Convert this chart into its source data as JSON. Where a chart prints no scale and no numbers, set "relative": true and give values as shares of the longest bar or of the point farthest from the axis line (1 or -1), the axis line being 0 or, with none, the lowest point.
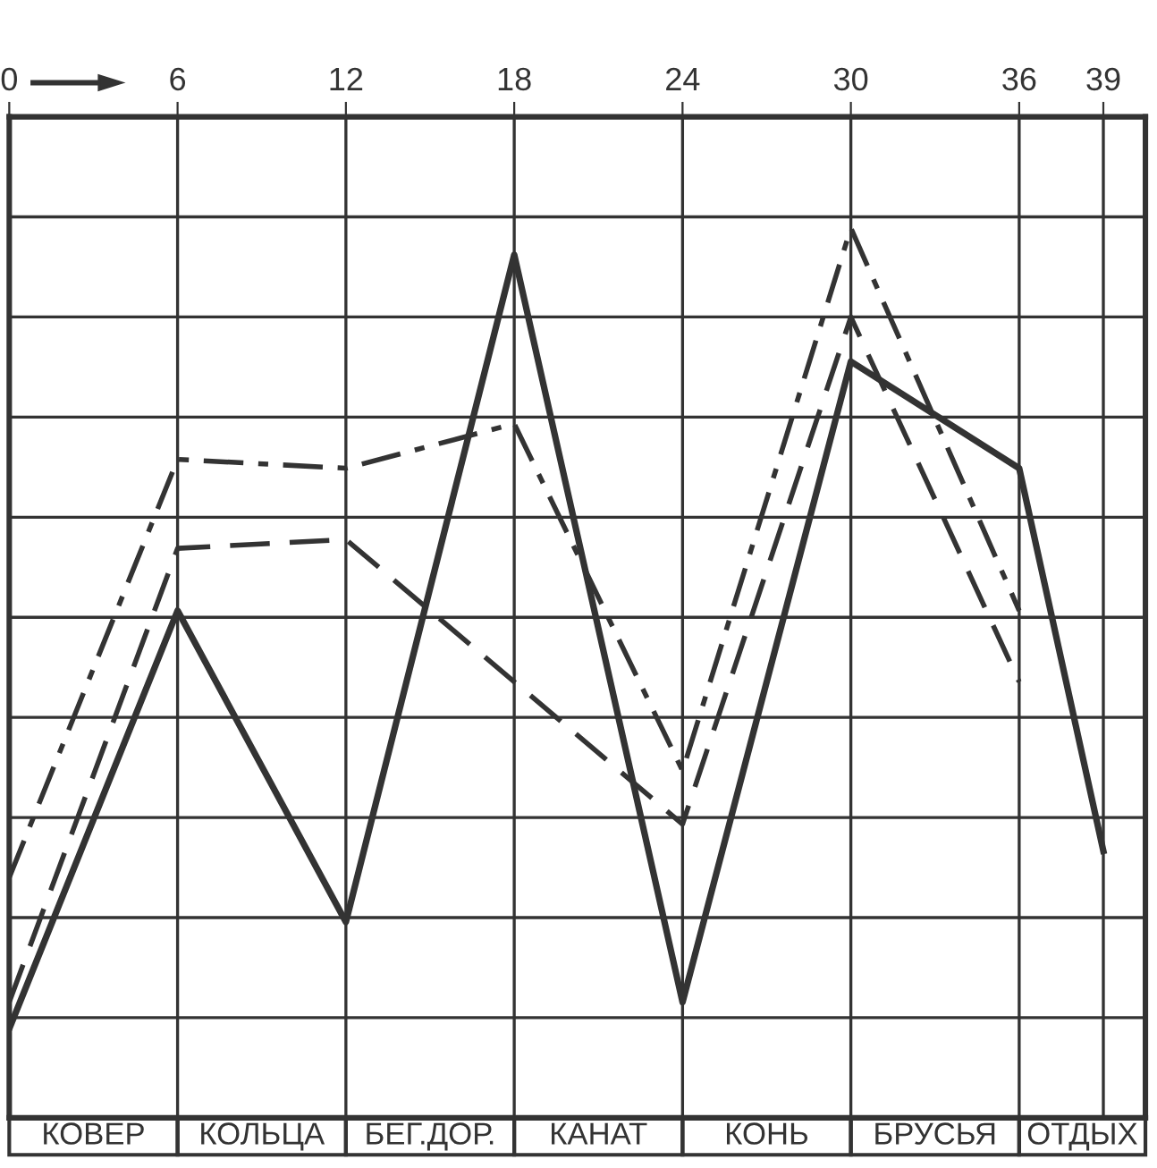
{
  "chart_data": {
    "type": "line",
    "relative": true,
    "x": [
      0,
      6,
      12,
      18,
      24,
      30,
      36,
      39
    ],
    "xlim": [
      0,
      40.5
    ],
    "xticks": [
      0,
      6,
      12,
      18,
      24,
      30,
      36,
      39
    ],
    "grid": true,
    "series": [
      {
        "color": "#333333",
        "line_style": "solid",
        "values": [
          0.1,
          0.57,
          0.22,
          0.97,
          0.13,
          0.85,
          0.73,
          0.3
        ]
      },
      {
        "color": "#333333",
        "line_style": "dashed",
        "x": [
          0,
          6,
          12,
          24,
          30,
          36
        ],
        "values": [
          0.13,
          0.64,
          0.65,
          0.33,
          0.9,
          0.49
        ]
      },
      {
        "color": "#333333",
        "line_style": "dashdot",
        "x": [
          0,
          6,
          12,
          18,
          24,
          30,
          36
        ],
        "values": [
          0.27,
          0.74,
          0.73,
          0.78,
          0.39,
          1.0,
          0.57
        ]
      }
    ],
    "annotations": [
      "КОВЕР",
      "КОЛЬЦА",
      "БЕГ.ДОР.",
      "КАНАТ",
      "КОНЬ",
      "БРУСЬЯ",
      "ОТДЫХ"
    ]
  }
}
